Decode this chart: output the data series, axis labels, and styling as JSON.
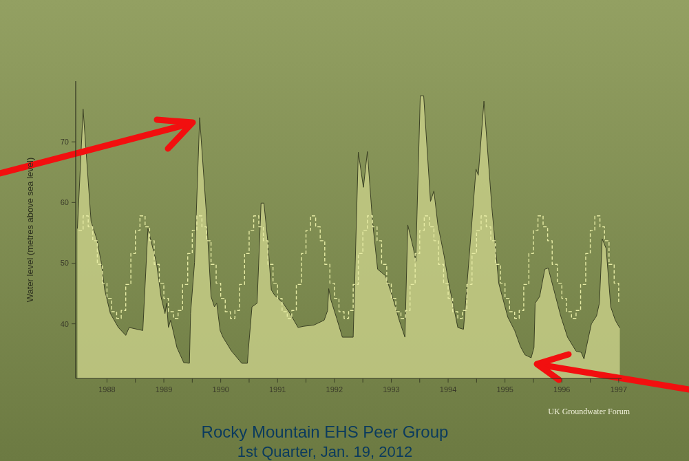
{
  "chart_data": {
    "type": "area",
    "ylabel": "Water level (metres above sea level)",
    "xlim": [
      1987.45,
      1997.05
    ],
    "xticks": [
      1988,
      1989,
      1990,
      1991,
      1992,
      1993,
      1994,
      1995,
      1996,
      1997,
      {
        "value": 1988.5,
        "label": null
      },
      {
        "value": 1989.5,
        "label": null
      },
      {
        "value": 1990.5,
        "label": null
      },
      {
        "value": 1991.5,
        "label": null
      },
      {
        "value": 1992.5,
        "label": null
      },
      {
        "value": 1993.5,
        "label": null
      },
      {
        "value": 1994.5,
        "label": null
      },
      {
        "value": 1995.5,
        "label": null
      },
      {
        "value": 1996.5,
        "label": null
      }
    ],
    "ylim": [
      31,
      80
    ],
    "yticks": [
      40,
      50,
      60,
      70
    ],
    "annotations": [
      "UK Groundwater Forum",
      "Rocky Mountain EHS Peer Group",
      "1st Quarter, Jan. 19, 2012"
    ],
    "series": [
      {
        "color": "#3b4124",
        "x": [
          1987.48,
          1987.58,
          1987.72,
          1987.82,
          1987.9,
          1987.96,
          1988.06,
          1988.2,
          1988.33,
          1988.39,
          1988.63,
          1988.72,
          1988.87,
          1988.95,
          1989.02,
          1989.05,
          1989.08,
          1989.12,
          1989.23,
          1989.35,
          1989.45,
          1989.47,
          1989.54,
          1989.63,
          1989.75,
          1989.83,
          1989.89,
          1989.93,
          1989.99,
          1990.04,
          1990.19,
          1990.37,
          1990.47,
          1990.49,
          1990.55,
          1990.64,
          1990.71,
          1990.76,
          1990.83,
          1990.89,
          1990.95,
          1991.1,
          1991.22,
          1991.36,
          1991.46,
          1991.64,
          1991.82,
          1991.88,
          1991.9,
          1991.94,
          1992.04,
          1992.14,
          1992.33,
          1992.42,
          1992.51,
          1992.58,
          1992.67,
          1992.76,
          1992.9,
          1993.02,
          1993.14,
          1993.24,
          1993.29,
          1993.39,
          1993.43,
          1993.51,
          1993.57,
          1993.69,
          1993.75,
          1993.82,
          1993.93,
          1994.01,
          1994.11,
          1994.17,
          1994.27,
          1994.31,
          1994.4,
          1994.49,
          1994.53,
          1994.63,
          1994.77,
          1994.89,
          1995.05,
          1995.17,
          1995.27,
          1995.35,
          1995.46,
          1995.51,
          1995.53,
          1995.61,
          1995.7,
          1995.76,
          1995.86,
          1995.98,
          1996.1,
          1996.25,
          1996.34,
          1996.39,
          1996.43,
          1996.52,
          1996.61,
          1996.66,
          1996.71,
          1996.78,
          1996.86,
          1996.94,
          1997.02
        ],
        "values": [
          55.7,
          75.4,
          56.9,
          54.0,
          50.1,
          45.6,
          41.7,
          39.4,
          38.1,
          39.4,
          38.9,
          55.7,
          50.1,
          44.5,
          41.7,
          43.4,
          39.4,
          40.6,
          36.1,
          33.6,
          33.5,
          41.7,
          50.1,
          74.0,
          58.0,
          44.5,
          42.8,
          43.4,
          38.9,
          37.8,
          35.5,
          33.5,
          33.5,
          36.1,
          42.8,
          43.4,
          59.9,
          59.9,
          53.5,
          45.6,
          44.7,
          43.4,
          41.7,
          39.4,
          39.6,
          39.8,
          40.6,
          42.2,
          45.8,
          43.9,
          40.9,
          37.8,
          37.8,
          68.3,
          62.5,
          68.4,
          56.9,
          49.0,
          47.9,
          44.5,
          40.6,
          37.8,
          56.3,
          52.4,
          50.3,
          77.6,
          77.6,
          60.2,
          61.9,
          56.3,
          51.2,
          46.7,
          42.2,
          39.4,
          39.1,
          43.9,
          54.6,
          65.5,
          64.5,
          76.7,
          59.1,
          46.7,
          41.1,
          38.9,
          36.3,
          34.9,
          34.4,
          36.1,
          43.4,
          44.5,
          49.0,
          49.2,
          45.6,
          41.3,
          37.8,
          35.5,
          35.3,
          34.2,
          36.1,
          40.0,
          41.3,
          43.4,
          54.0,
          52.4,
          42.8,
          40.6,
          39.3
        ]
      },
      {
        "type": "step",
        "color": "#e6eba4",
        "line_style": "dashed",
        "x": [
          1987.5,
          1987.58,
          1987.67,
          1987.75,
          1987.83,
          1987.92,
          1988,
          1988.08,
          1988.17,
          1988.25,
          1988.33,
          1988.42,
          1988.5,
          1988.58,
          1988.67,
          1988.75,
          1988.83,
          1988.92,
          1989,
          1989.08,
          1989.17,
          1989.25,
          1989.33,
          1989.42,
          1989.5,
          1989.58,
          1989.67,
          1989.75,
          1989.83,
          1989.92,
          1990,
          1990.08,
          1990.17,
          1990.25,
          1990.33,
          1990.42,
          1990.5,
          1990.58,
          1990.67,
          1990.75,
          1990.83,
          1990.92,
          1991,
          1991.08,
          1991.17,
          1991.25,
          1991.33,
          1991.42,
          1991.5,
          1991.58,
          1991.67,
          1991.75,
          1991.83,
          1991.92,
          1992,
          1992.08,
          1992.17,
          1992.25,
          1992.33,
          1992.42,
          1992.5,
          1992.58,
          1992.67,
          1992.75,
          1992.83,
          1992.92,
          1993,
          1993.08,
          1993.17,
          1993.25,
          1993.33,
          1993.42,
          1993.5,
          1993.58,
          1993.67,
          1993.75,
          1993.83,
          1993.92,
          1994,
          1994.08,
          1994.17,
          1994.25,
          1994.33,
          1994.42,
          1994.5,
          1994.58,
          1994.67,
          1994.75,
          1994.83,
          1994.92,
          1995,
          1995.08,
          1995.17,
          1995.25,
          1995.33,
          1995.42,
          1995.5,
          1995.58,
          1995.67,
          1995.75,
          1995.83,
          1995.92,
          1996,
          1996.08,
          1996.17,
          1996.25,
          1996.33,
          1996.42,
          1996.5,
          1996.58,
          1996.67,
          1996.75,
          1996.83,
          1996.92,
          1997
        ],
        "values": [
          55.4,
          57.8,
          56,
          53.7,
          49.8,
          46.7,
          44.2,
          42,
          40.9,
          42.2,
          46.5,
          51.6,
          55.4,
          57.8,
          56,
          53.7,
          49.8,
          46.7,
          44.2,
          42,
          40.9,
          42.2,
          46.5,
          51.6,
          55.4,
          57.8,
          56,
          53.7,
          49.8,
          46.7,
          44.2,
          42,
          40.9,
          42.2,
          46.5,
          51.6,
          55.4,
          57.8,
          56,
          53.7,
          49.8,
          46.7,
          44.2,
          42,
          40.9,
          42.2,
          46.5,
          51.6,
          55.4,
          57.8,
          56,
          53.7,
          49.8,
          46.7,
          44.2,
          42,
          40.9,
          42.2,
          46.5,
          51.6,
          55.4,
          57.8,
          56,
          53.7,
          49.8,
          46.7,
          44.2,
          42,
          40.9,
          42.2,
          46.5,
          51.6,
          55.4,
          57.8,
          56,
          53.7,
          49.8,
          46.7,
          44.2,
          42,
          40.9,
          42.2,
          46.5,
          51.6,
          55.4,
          57.8,
          56,
          53.7,
          49.8,
          46.7,
          44.2,
          42,
          40.9,
          42.2,
          46.5,
          51.6,
          55.4,
          57.8,
          56,
          53.7,
          49.8,
          46.7,
          44.2,
          42,
          40.9,
          42.2,
          46.5,
          51.6,
          55.4,
          57.8,
          56,
          53.7,
          49.8,
          46.7,
          43.6
        ]
      }
    ]
  }
}
